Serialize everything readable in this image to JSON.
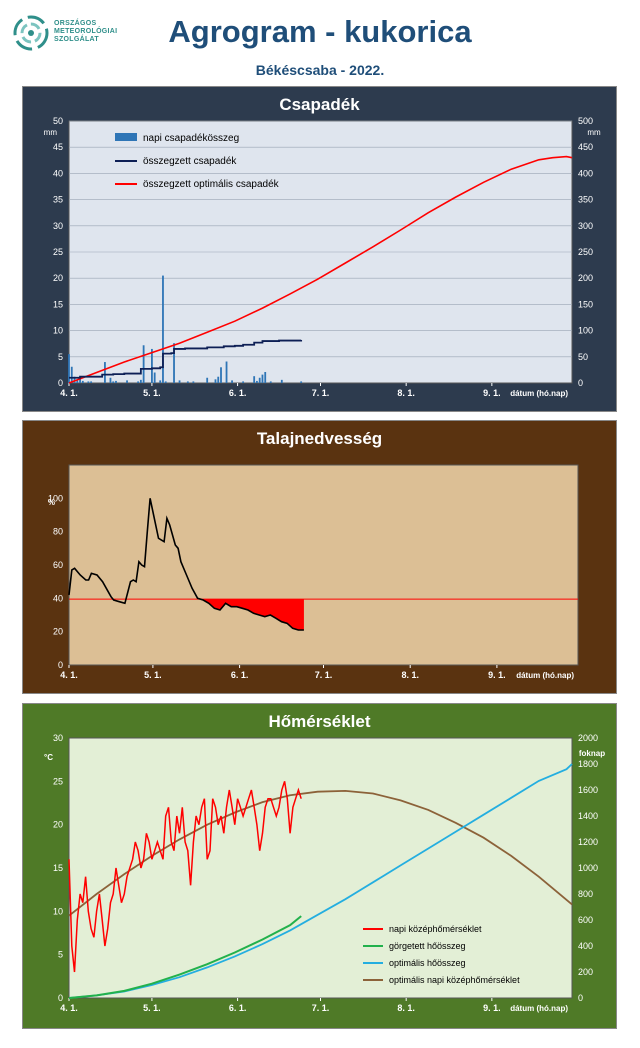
{
  "header": {
    "logo_lines": [
      "ORSZÁGOS",
      "METEOROLÓGIAI",
      "SZOLGÁLAT"
    ],
    "title": "Agrogram - kukorica",
    "subtitle": "Békéscsaba - 2022."
  },
  "colors": {
    "title_blue": "#1f4e79",
    "precip_panel": "#2d3b4e",
    "soil_panel": "#5a3310",
    "temp_panel": "#4f7a27",
    "daily_bar": "#2e75b6",
    "cum_precip": "#0d1f55",
    "optimal_red": "#ff0000",
    "running_green": "#22b14c",
    "optimal_heat": "#24aee0",
    "optimal_temp_brown": "#8c6239"
  },
  "chart_data": [
    {
      "type": "bar+line",
      "title": "Csapadék",
      "y_unit_left": "mm",
      "y_unit_right": "mm",
      "xlabel": "dátum (hó.nap)",
      "x_ticks": [
        "4. 1.",
        "5. 1.",
        "6. 1.",
        "7. 1.",
        "8. 1.",
        "9. 1."
      ],
      "x_range_days": [
        0,
        182
      ],
      "ylim_left": [
        0,
        50
      ],
      "ylim_right": [
        0,
        500
      ],
      "y_ticks_left": [
        0,
        5,
        10,
        15,
        20,
        25,
        30,
        35,
        40,
        45,
        50
      ],
      "y_ticks_right": [
        0,
        50,
        100,
        150,
        200,
        250,
        300,
        350,
        400,
        450,
        500
      ],
      "legend": [
        "napi csapadékösszeg",
        "összegzett csapadék",
        "összegzett optimális csapadék"
      ],
      "legend_position": "top-left",
      "daily_precip": {
        "day": [
          0,
          1,
          2,
          3,
          4,
          5,
          7,
          8,
          13,
          15,
          16,
          17,
          21,
          25,
          26,
          27,
          30,
          31,
          33,
          34,
          35,
          38,
          40,
          43,
          45,
          50,
          53,
          54,
          55,
          57,
          59,
          63,
          67,
          68,
          69,
          70,
          71,
          73,
          77,
          84
        ],
        "mm": [
          5.5,
          3.1,
          1.2,
          0.5,
          0.8,
          0.4,
          0.3,
          0.3,
          4.0,
          1.0,
          0.3,
          0.4,
          0.5,
          0.3,
          0.6,
          7.2,
          6.5,
          2.0,
          0.5,
          20.5,
          0.3,
          7.6,
          0.5,
          0.3,
          0.3,
          1.0,
          0.7,
          1.2,
          3.0,
          4.1,
          0.5,
          0.3,
          1.3,
          0.4,
          1.0,
          1.6,
          2.1,
          0.3,
          0.6,
          0.3
        ]
      },
      "cumulative_precip": {
        "day": [
          0,
          4,
          12,
          16,
          20,
          25,
          26,
          30,
          33,
          34,
          37,
          38,
          42,
          50,
          56,
          60,
          63,
          67,
          70,
          76,
          84
        ],
        "mm": [
          10,
          12,
          16,
          17,
          18,
          18,
          27,
          28,
          30,
          56,
          57,
          65,
          66,
          68,
          70,
          71,
          73,
          77,
          80,
          81,
          82
        ]
      },
      "optimal_cumulative_precip": {
        "day": [
          0,
          10,
          20,
          30,
          40,
          50,
          60,
          70,
          80,
          90,
          100,
          110,
          120,
          130,
          140,
          150,
          160,
          170,
          175,
          180,
          182
        ],
        "mm": [
          0,
          20,
          40,
          58,
          76,
          97,
          118,
          143,
          170,
          198,
          229,
          260,
          292,
          325,
          355,
          383,
          408,
          426,
          430,
          432,
          430
        ]
      }
    },
    {
      "type": "line+area",
      "title": "Talajnedvesség",
      "y_unit": "%",
      "xlabel": "dátum (hó.nap)",
      "x_ticks": [
        "4. 1.",
        "5. 1.",
        "6. 1.",
        "7. 1.",
        "8. 1.",
        "9. 1."
      ],
      "x_range_days": [
        0,
        182
      ],
      "ylim": [
        0,
        120
      ],
      "y_ticks": [
        0,
        20,
        40,
        60,
        80,
        100
      ],
      "threshold": 39.5,
      "soil_moisture": {
        "day": [
          0,
          1,
          2,
          4,
          6,
          7,
          8,
          10,
          12,
          14,
          15,
          16,
          18,
          20,
          22,
          23,
          24,
          25,
          26,
          27,
          28,
          29,
          30,
          32,
          34,
          35,
          36,
          38,
          39,
          40,
          42,
          44,
          46,
          48,
          50,
          52,
          54,
          56,
          58,
          60,
          62,
          64,
          66,
          68,
          70,
          72,
          74,
          76,
          78,
          80,
          82,
          84
        ],
        "percent": [
          42,
          57,
          58,
          54,
          51,
          51,
          55,
          54,
          50,
          44,
          41,
          39,
          38,
          37,
          50,
          51,
          50,
          62,
          60,
          59,
          80,
          100,
          92,
          76,
          74,
          88,
          84,
          72,
          70,
          62,
          54,
          46,
          40,
          39,
          37,
          34,
          33,
          37,
          35,
          35,
          34,
          33,
          31,
          30,
          29,
          30,
          28,
          26,
          25,
          22,
          21,
          21
        ]
      }
    },
    {
      "type": "line",
      "title": "Hőmérséklet",
      "y_unit_left": "°C",
      "y_unit_right": "foknap",
      "xlabel": "dátum (hó.nap)",
      "x_ticks": [
        "4. 1.",
        "5. 1.",
        "6. 1.",
        "7. 1.",
        "8. 1.",
        "9. 1."
      ],
      "x_range_days": [
        0,
        182
      ],
      "ylim_left": [
        0,
        30
      ],
      "ylim_right": [
        0,
        2000
      ],
      "y_ticks_left": [
        0,
        5,
        10,
        15,
        20,
        25,
        30
      ],
      "y_ticks_right": [
        0,
        200,
        400,
        600,
        800,
        1000,
        1200,
        1400,
        1600,
        1800,
        2000
      ],
      "legend": [
        "napi középhőmérséklet",
        "görgetett hőösszeg",
        "optimális hőösszeg",
        "optimális napi középhőmérséklet"
      ],
      "legend_position": "bottom-right",
      "daily_mean_temp": {
        "day": [
          0,
          1,
          2,
          3,
          4,
          5,
          6,
          7,
          8,
          9,
          10,
          11,
          12,
          13,
          14,
          15,
          16,
          17,
          18,
          19,
          20,
          21,
          22,
          23,
          24,
          25,
          26,
          27,
          28,
          29,
          30,
          31,
          32,
          33,
          34,
          35,
          36,
          37,
          38,
          39,
          40,
          41,
          42,
          43,
          44,
          45,
          46,
          47,
          48,
          49,
          50,
          51,
          52,
          53,
          54,
          55,
          56,
          57,
          58,
          59,
          60,
          61,
          62,
          63,
          64,
          65,
          66,
          67,
          68,
          69,
          70,
          71,
          72,
          73,
          74,
          75,
          76,
          77,
          78,
          79,
          80,
          81,
          82,
          83,
          84
        ],
        "celsius": [
          16,
          6,
          3,
          9,
          12,
          11,
          14,
          10,
          8,
          7,
          10,
          12,
          9,
          6,
          8,
          11,
          12,
          15,
          13,
          11,
          12,
          14,
          15,
          16,
          18,
          17,
          15,
          16,
          19,
          18,
          16,
          17,
          18,
          17,
          16,
          21,
          22,
          18,
          17,
          21,
          19,
          22,
          18,
          17,
          13,
          18,
          21,
          20,
          22,
          23,
          16,
          17,
          23,
          22,
          20,
          21,
          19,
          22,
          24,
          22,
          20,
          23,
          22,
          21,
          22,
          23,
          24,
          22,
          20,
          17,
          19,
          22,
          23,
          23,
          22,
          21,
          22,
          24,
          25,
          23,
          19,
          22,
          23,
          24,
          23
        ]
      },
      "running_heat_sum": {
        "day": [
          0,
          10,
          20,
          30,
          40,
          50,
          60,
          70,
          80,
          84
        ],
        "foknap": [
          0,
          20,
          55,
          110,
          180,
          260,
          350,
          450,
          560,
          630
        ]
      },
      "optimal_heat_sum": {
        "day": [
          0,
          10,
          20,
          30,
          40,
          50,
          60,
          70,
          80,
          90,
          100,
          110,
          120,
          130,
          140,
          150,
          160,
          170,
          180,
          182
        ],
        "foknap": [
          0,
          20,
          50,
          100,
          160,
          235,
          320,
          415,
          520,
          640,
          760,
          890,
          1020,
          1150,
          1280,
          1410,
          1540,
          1670,
          1760,
          1800
        ]
      },
      "optimal_daily_mean_temp": {
        "day": [
          0,
          10,
          20,
          30,
          40,
          50,
          60,
          70,
          80,
          90,
          100,
          110,
          120,
          130,
          140,
          150,
          160,
          170,
          182
        ],
        "celsius": [
          9.5,
          12.0,
          14.3,
          16.4,
          18.3,
          20.0,
          21.4,
          22.6,
          23.4,
          23.8,
          23.9,
          23.6,
          22.8,
          21.7,
          20.2,
          18.5,
          16.4,
          14.0,
          10.8
        ]
      }
    }
  ]
}
